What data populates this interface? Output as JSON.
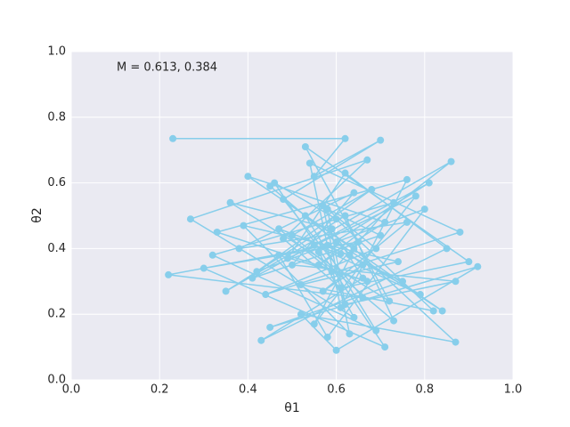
{
  "chart_data": {
    "type": "line",
    "xlabel": "θ1",
    "ylabel": "θ2",
    "annotation": "M = 0.613, 0.384",
    "color": "#87ceeb",
    "grid": true,
    "markers": true,
    "xlim": [
      0,
      1
    ],
    "ylim": [
      0,
      1
    ],
    "xticks": [
      {
        "value": 0,
        "label": "0.0"
      },
      {
        "value": 0.2,
        "label": "0.2"
      },
      {
        "value": 0.4,
        "label": "0.4"
      },
      {
        "value": 0.6,
        "label": "0.6"
      },
      {
        "value": 0.8,
        "label": "0.8"
      },
      {
        "value": 1,
        "label": "1.0"
      }
    ],
    "yticks": [
      {
        "value": 0,
        "label": "0.0"
      },
      {
        "value": 0.2,
        "label": "0.2"
      },
      {
        "value": 0.4,
        "label": "0.4"
      },
      {
        "value": 0.6,
        "label": "0.6"
      },
      {
        "value": 0.8,
        "label": "0.8"
      },
      {
        "value": 1,
        "label": "1.0"
      }
    ],
    "x": [
      0.23,
      0.62,
      0.55,
      0.7,
      0.48,
      0.66,
      0.22,
      0.58,
      0.75,
      0.45,
      0.92,
      0.6,
      0.52,
      0.87,
      0.64,
      0.4,
      0.71,
      0.56,
      0.86,
      0.35,
      0.62,
      0.73,
      0.5,
      0.68,
      0.42,
      0.8,
      0.58,
      0.47,
      0.67,
      0.33,
      0.76,
      0.61,
      0.54,
      0.88,
      0.44,
      0.69,
      0.57,
      0.63,
      0.39,
      0.74,
      0.52,
      0.82,
      0.6,
      0.46,
      0.71,
      0.3,
      0.65,
      0.55,
      0.78,
      0.49,
      0.62,
      0.85,
      0.43,
      0.66,
      0.59,
      0.36,
      0.72,
      0.53,
      0.9,
      0.61,
      0.48,
      0.67,
      0.27,
      0.64,
      0.56,
      0.81,
      0.41,
      0.7,
      0.58,
      0.62,
      0.87,
      0.5,
      0.64,
      0.38,
      0.76,
      0.57,
      0.66,
      0.45,
      0.6,
      0.84,
      0.53,
      0.69,
      0.32,
      0.73,
      0.59,
      0.47,
      0.63,
      0.79,
      0.55,
      0.61
    ],
    "values": [
      0.735,
      0.735,
      0.62,
      0.73,
      0.55,
      0.25,
      0.32,
      0.41,
      0.3,
      0.16,
      0.345,
      0.09,
      0.2,
      0.115,
      0.4,
      0.62,
      0.48,
      0.35,
      0.665,
      0.27,
      0.5,
      0.18,
      0.44,
      0.58,
      0.33,
      0.52,
      0.13,
      0.38,
      0.3,
      0.45,
      0.61,
      0.22,
      0.66,
      0.45,
      0.26,
      0.4,
      0.53,
      0.14,
      0.47,
      0.36,
      0.29,
      0.21,
      0.49,
      0.6,
      0.1,
      0.34,
      0.42,
      0.17,
      0.56,
      0.37,
      0.63,
      0.4,
      0.12,
      0.31,
      0.46,
      0.54,
      0.24,
      0.71,
      0.36,
      0.28,
      0.43,
      0.67,
      0.49,
      0.19,
      0.39,
      0.6,
      0.31,
      0.44,
      0.52,
      0.23,
      0.3,
      0.35,
      0.57,
      0.4,
      0.48,
      0.27,
      0.35,
      0.59,
      0.42,
      0.21,
      0.5,
      0.15,
      0.38,
      0.54,
      0.33,
      0.46,
      0.38,
      0.26,
      0.41,
      0.384
    ]
  }
}
